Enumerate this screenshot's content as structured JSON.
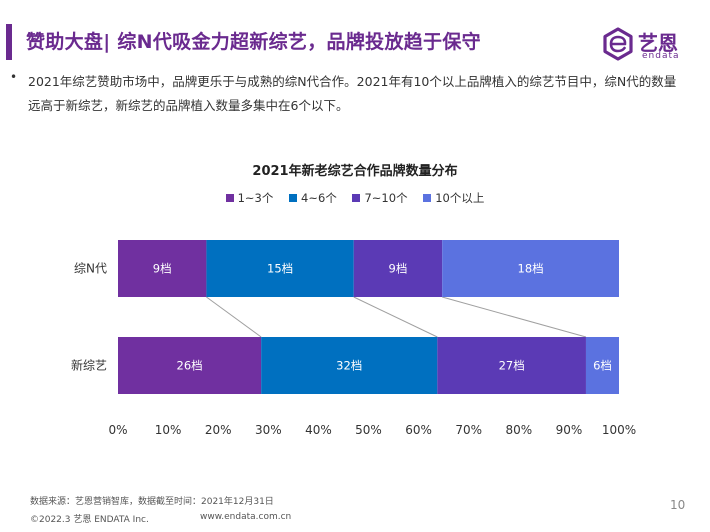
{
  "header": {
    "title": "赞助大盘| 综N代吸金力超新综艺，品牌投放趋于保守",
    "logo_text": "艺恩",
    "logo_sub": "endata"
  },
  "summary": {
    "bullet": "•",
    "text": "2021年综艺赞助市场中，品牌更乐于与成熟的综N代合作。2021年有10个以上品牌植入的综艺节目中，综N代的数量远高于新综艺，新综艺的品牌植入数量多集中在6个以下。"
  },
  "chart_data": {
    "type": "bar",
    "orientation": "horizontal",
    "stacked": "percent",
    "title": "2021年新老综艺合作品牌数量分布",
    "categories": [
      "综N代",
      "新综艺"
    ],
    "series": [
      {
        "name": "1~3个",
        "color": "#7030a0",
        "values": [
          9,
          26
        ],
        "labels": [
          "9档",
          "26档"
        ]
      },
      {
        "name": "4~6个",
        "color": "#0070c0",
        "values": [
          15,
          32
        ],
        "labels": [
          "15档",
          "32档"
        ]
      },
      {
        "name": "7~10个",
        "color": "#5b3ab5",
        "values": [
          9,
          27
        ],
        "labels": [
          "9档",
          "27档"
        ]
      },
      {
        "name": "10个以上",
        "color": "#5b72e0",
        "values": [
          18,
          6
        ],
        "labels": [
          "18档",
          "6档"
        ]
      }
    ],
    "xlim": [
      0,
      100
    ],
    "x_ticks": [
      "0%",
      "10%",
      "20%",
      "30%",
      "40%",
      "50%",
      "60%",
      "70%",
      "80%",
      "90%",
      "100%"
    ],
    "legend_position": "top",
    "series_lines": true
  },
  "footer": {
    "source": "数据来源：艺恩营销智库，数据截至时间：2021年12月31日",
    "copyright": "©2022.3 艺恩 ENDATA Inc.",
    "url": "www.endata.com.cn",
    "page_number": "10"
  }
}
